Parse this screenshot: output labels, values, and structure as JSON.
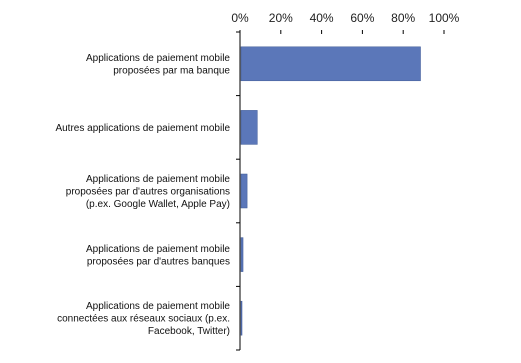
{
  "chart_data": {
    "type": "bar",
    "orientation": "horizontal",
    "categories": [
      [
        "Applications de paiement mobile",
        "proposées par ma banque"
      ],
      [
        "Autres applications de paiement mobile"
      ],
      [
        "Applications de paiement mobile",
        "proposées par d'autres organisations",
        "(p.ex. Google Wallet, Apple Pay)"
      ],
      [
        "Applications de paiement mobile",
        "proposées par d'autres banques"
      ],
      [
        "Applications de paiement mobile",
        "connectées aux réseaux sociaux (p.ex.",
        "Facebook, Twitter)"
      ]
    ],
    "values": [
      88,
      8,
      3,
      1,
      0.5
    ],
    "xlim": [
      0,
      100
    ],
    "xticks": [
      0,
      20,
      40,
      60,
      80,
      100
    ],
    "xtick_labels": [
      "0%",
      "20%",
      "40%",
      "60%",
      "80%",
      "100%"
    ],
    "x_axis_position": "top",
    "grid": false,
    "colors": {
      "bar": "#5b77b9",
      "bar_stroke": "#3f5a96",
      "axis": "#000000"
    }
  }
}
